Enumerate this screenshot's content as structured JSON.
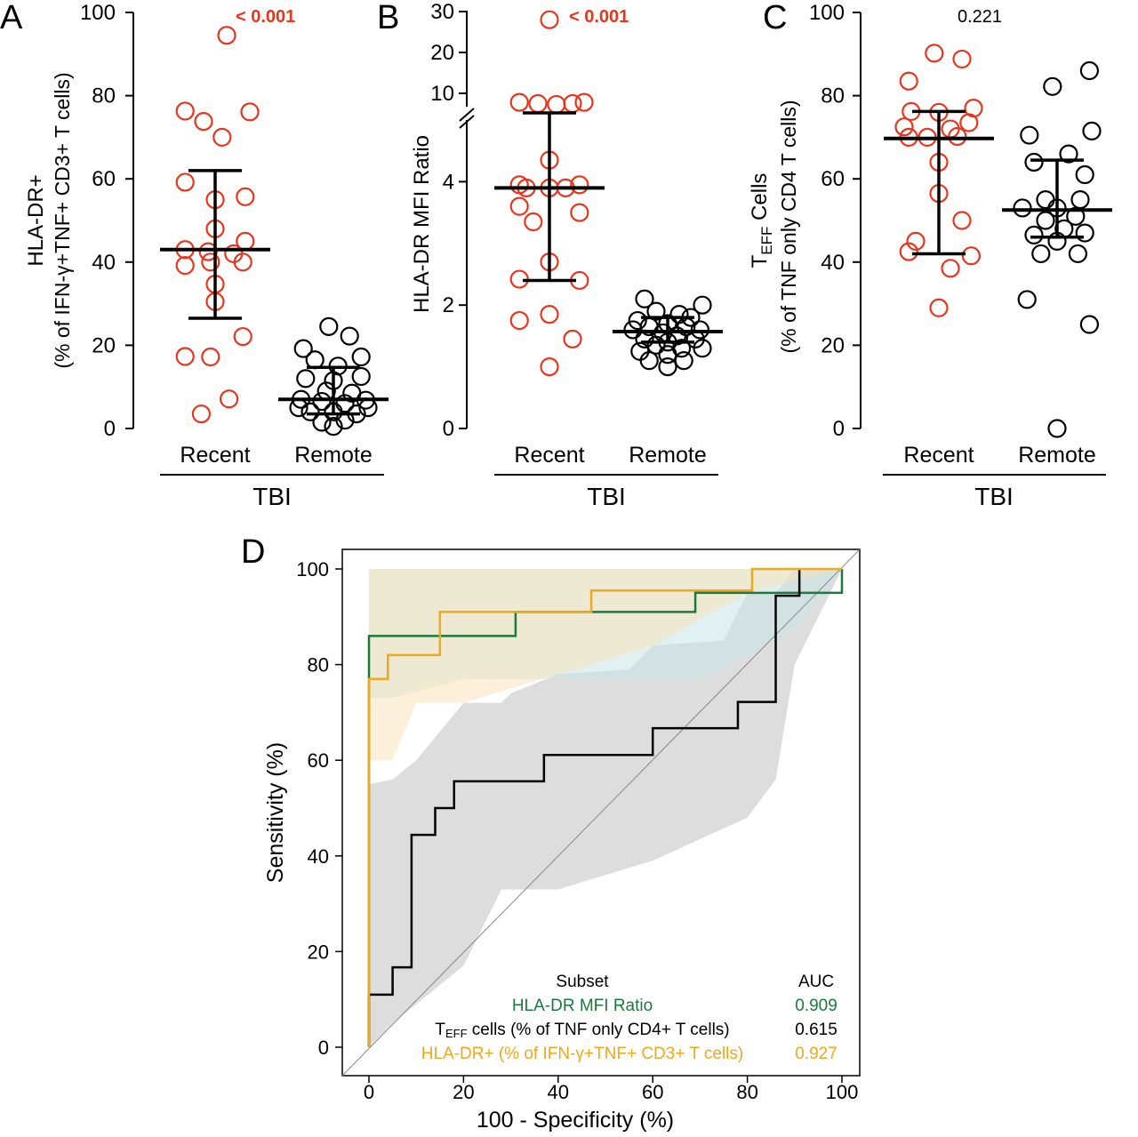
{
  "colors": {
    "recent": "#e8351e",
    "remote": "#000000",
    "green": "#1b7a3d",
    "orange": "#f0a81c",
    "black": "#000000",
    "pval_red": "#e8351e",
    "band_gray": "#d2d2d2",
    "band_blue": "#c9e3e6",
    "band_orange": "#fbe1b5"
  },
  "chart_data": [
    {
      "panel": "A",
      "type": "scatter",
      "ylabel_line1": "HLA-DR+",
      "ylabel_line2": "(% of IFN-γ+TNF+ CD3+ T cells)",
      "ylim": [
        0,
        100
      ],
      "yticks": [
        "0",
        "20",
        "40",
        "60",
        "80",
        "100"
      ],
      "categories": [
        "Recent",
        "Remote"
      ],
      "group_label": "TBI",
      "pvalue": "< 0.001",
      "series": [
        {
          "name": "Recent",
          "points": [
            [
              0.05,
              94.5
            ],
            [
              -0.13,
              76.3
            ],
            [
              -0.05,
              73.8
            ],
            [
              0.03,
              70.0
            ],
            [
              0.15,
              76.1
            ],
            [
              -0.13,
              59.2
            ],
            [
              0.13,
              55.7
            ],
            [
              0.0,
              55.0
            ],
            [
              0.0,
              48.0
            ],
            [
              -0.13,
              43.0
            ],
            [
              -0.03,
              42.5
            ],
            [
              0.13,
              45.0
            ],
            [
              0.08,
              42.0
            ],
            [
              -0.13,
              39.2
            ],
            [
              -0.02,
              40.0
            ],
            [
              0.12,
              40.0
            ],
            [
              0.0,
              34.7
            ],
            [
              0.0,
              30.5
            ],
            [
              0.12,
              22.1
            ],
            [
              -0.13,
              17.3
            ],
            [
              -0.02,
              17.2
            ],
            [
              0.06,
              7.1
            ],
            [
              -0.06,
              3.5
            ]
          ],
          "median": 43.0,
          "q1": 26.5,
          "q3": 62.0
        },
        {
          "name": "Remote",
          "points": [
            [
              -0.02,
              24.5
            ],
            [
              -0.13,
              19.2
            ],
            [
              0.07,
              22.2
            ],
            [
              0.12,
              17.2
            ],
            [
              -0.08,
              16.5
            ],
            [
              0.02,
              15.0
            ],
            [
              -0.12,
              12.0
            ],
            [
              0.0,
              11.5
            ],
            [
              0.12,
              12.5
            ],
            [
              -0.03,
              9.0
            ],
            [
              0.08,
              8.5
            ],
            [
              -0.14,
              7.0
            ],
            [
              -0.05,
              6.5
            ],
            [
              0.05,
              6.0
            ],
            [
              0.14,
              6.8
            ],
            [
              -0.1,
              4.0
            ],
            [
              0.0,
              4.0
            ],
            [
              0.1,
              3.5
            ],
            [
              -0.05,
              1.5
            ],
            [
              0.05,
              2.0
            ],
            [
              0.15,
              5.0
            ],
            [
              -0.15,
              5.0
            ],
            [
              0.0,
              0.5
            ]
          ],
          "median": 7.0,
          "q1": 3.5,
          "q3": 14.7
        }
      ]
    },
    {
      "panel": "B",
      "type": "scatter",
      "ylabel": "HLA-DR MFI Ratio",
      "ylim": [
        0,
        30
      ],
      "yticks_lower": [
        "0",
        "2",
        "4"
      ],
      "yticks_upper": [
        "10",
        "20",
        "30"
      ],
      "axis_break": [
        5.5,
        8.5
      ],
      "categories": [
        "Recent",
        "Remote"
      ],
      "group_label": "TBI",
      "pvalue": "< 0.001",
      "series": [
        {
          "name": "Recent",
          "points": [
            [
              0.0,
              28.0
            ],
            [
              -0.13,
              7.8
            ],
            [
              -0.05,
              7.5
            ],
            [
              0.03,
              7.3
            ],
            [
              0.1,
              7.5
            ],
            [
              0.15,
              7.8
            ],
            [
              0.0,
              4.35
            ],
            [
              -0.13,
              3.95
            ],
            [
              0.0,
              3.9
            ],
            [
              0.13,
              3.95
            ],
            [
              -0.13,
              3.6
            ],
            [
              0.13,
              3.5
            ],
            [
              -0.07,
              3.35
            ],
            [
              0.0,
              2.7
            ],
            [
              -0.13,
              2.42
            ],
            [
              0.13,
              2.4
            ],
            [
              -0.13,
              1.75
            ],
            [
              0.0,
              1.85
            ],
            [
              0.1,
              1.45
            ],
            [
              0.0,
              1.0
            ],
            [
              -0.1,
              3.9
            ],
            [
              0.07,
              3.9
            ]
          ],
          "median": 3.9,
          "q1": 2.4,
          "q3": 6.8
        },
        {
          "name": "Remote",
          "points": [
            [
              -0.1,
              2.1
            ],
            [
              0.15,
              2.0
            ],
            [
              -0.05,
              1.9
            ],
            [
              0.05,
              1.85
            ],
            [
              0.1,
              1.8
            ],
            [
              -0.13,
              1.75
            ],
            [
              0.0,
              1.7
            ],
            [
              -0.08,
              1.65
            ],
            [
              0.08,
              1.65
            ],
            [
              0.14,
              1.6
            ],
            [
              -0.15,
              1.6
            ],
            [
              -0.02,
              1.55
            ],
            [
              0.04,
              1.5
            ],
            [
              -0.1,
              1.45
            ],
            [
              0.12,
              1.45
            ],
            [
              0.0,
              1.4
            ],
            [
              -0.05,
              1.35
            ],
            [
              0.06,
              1.3
            ],
            [
              0.15,
              1.3
            ],
            [
              -0.12,
              1.25
            ],
            [
              0.0,
              1.2
            ],
            [
              -0.08,
              1.1
            ],
            [
              0.07,
              1.1
            ],
            [
              0.0,
              1.0
            ]
          ],
          "median": 1.57,
          "q1": 1.4,
          "q3": 1.8
        }
      ]
    },
    {
      "panel": "C",
      "type": "scatter",
      "ylabel_line1": "T",
      "ylabel_sub": "EFF",
      "ylabel_line1b": " Cells",
      "ylabel_line2": "(% of TNF only CD4 T cells)",
      "ylim": [
        0,
        100
      ],
      "yticks": [
        "0",
        "20",
        "40",
        "60",
        "80",
        "100"
      ],
      "categories": [
        "Recent",
        "Remote"
      ],
      "group_label": "TBI",
      "pvalue": "0.221",
      "series": [
        {
          "name": "Recent",
          "points": [
            [
              -0.02,
              90.2
            ],
            [
              0.1,
              88.8
            ],
            [
              -0.13,
              83.5
            ],
            [
              -0.12,
              76.2
            ],
            [
              0.0,
              76.0
            ],
            [
              0.15,
              77.0
            ],
            [
              -0.15,
              72.5
            ],
            [
              0.13,
              73.5
            ],
            [
              0.05,
              72.0
            ],
            [
              -0.05,
              70.0
            ],
            [
              0.08,
              70.2
            ],
            [
              -0.13,
              70.0
            ],
            [
              0.0,
              56.5
            ],
            [
              0.1,
              50.0
            ],
            [
              -0.1,
              45.0
            ],
            [
              0.05,
              38.5
            ],
            [
              -0.13,
              42.5
            ],
            [
              0.14,
              41.5
            ],
            [
              0.0,
              29.0
            ],
            [
              0.0,
              64.0
            ]
          ],
          "median": 69.7,
          "q1": 42.0,
          "q3": 76.2
        },
        {
          "name": "Remote",
          "points": [
            [
              0.14,
              86.0
            ],
            [
              -0.02,
              82.2
            ],
            [
              -0.12,
              70.5
            ],
            [
              0.15,
              71.5
            ],
            [
              -0.1,
              64.0
            ],
            [
              0.05,
              66.0
            ],
            [
              0.12,
              61.0
            ],
            [
              -0.05,
              55.0
            ],
            [
              0.1,
              55.0
            ],
            [
              -0.15,
              53.0
            ],
            [
              0.0,
              53.0
            ],
            [
              0.08,
              51.0
            ],
            [
              -0.05,
              50.0
            ],
            [
              0.03,
              48.0
            ],
            [
              -0.1,
              46.5
            ],
            [
              0.12,
              47.0
            ],
            [
              0.0,
              45.0
            ],
            [
              -0.07,
              42.0
            ],
            [
              0.09,
              42.0
            ],
            [
              -0.13,
              31.0
            ],
            [
              0.14,
              25.0
            ],
            [
              0.0,
              0.0
            ]
          ],
          "median": 52.5,
          "q1": 46.0,
          "q3": 64.5
        }
      ]
    },
    {
      "panel": "D",
      "type": "line",
      "xlabel": "100 - Specificity (%)",
      "ylabel": "Sensitivity (%)",
      "xlim": [
        0,
        100
      ],
      "ylim": [
        0,
        100
      ],
      "xticks": [
        "0",
        "20",
        "40",
        "60",
        "80",
        "100"
      ],
      "yticks": [
        "0",
        "20",
        "40",
        "60",
        "80",
        "100"
      ],
      "legend_header": "Subset",
      "legend_auc_header": "AUC",
      "series": [
        {
          "name": "HLA-DR MFI Ratio",
          "auc": "0.909",
          "x": [
            0,
            0,
            0,
            0,
            15,
            15,
            31,
            31,
            47,
            47,
            69,
            69,
            91,
            91,
            100,
            100
          ],
          "y": [
            0,
            77,
            77,
            86,
            86,
            86,
            86,
            91,
            91,
            91,
            91,
            95,
            95,
            95,
            95,
            100
          ]
        },
        {
          "name_prefix": "T",
          "name_sub": "EFF",
          "name_suffix": " cells (% of TNF only CD4+ T cells)",
          "auc": "0.615",
          "x": [
            0,
            0,
            5,
            5,
            9,
            9,
            14,
            14,
            18,
            18,
            37,
            37,
            60,
            60,
            78,
            78,
            86,
            86,
            91,
            91
          ],
          "y": [
            0,
            11,
            11,
            16.7,
            16.7,
            44.4,
            44.4,
            50,
            50,
            55.6,
            55.6,
            61.1,
            61.1,
            66.7,
            66.7,
            72.2,
            72.2,
            94.4,
            94.4,
            100
          ]
        },
        {
          "name": "HLA-DR+ (% of  IFN-γ+TNF+ CD3+ T cells)",
          "auc": "0.927",
          "x": [
            0,
            0,
            0,
            0,
            4,
            4,
            15,
            15,
            22,
            22,
            47,
            47,
            81,
            81,
            100
          ],
          "y": [
            0,
            77,
            77,
            77,
            77,
            82,
            82,
            91,
            91,
            91,
            91,
            95.5,
            95.5,
            100,
            100
          ]
        }
      ],
      "bands": {
        "gray": {
          "x": [
            0,
            5,
            20,
            28,
            40,
            60,
            80,
            86,
            90,
            100,
            100,
            90,
            86,
            80,
            75,
            60,
            55,
            40,
            30,
            28,
            20,
            10,
            5,
            0
          ],
          "y": [
            0,
            5,
            17,
            33,
            33,
            39,
            48,
            56,
            80,
            100,
            100,
            100,
            95,
            95,
            85,
            84,
            79,
            78,
            74,
            72,
            72,
            60,
            56,
            55
          ]
        },
        "blue": {
          "x": [
            0,
            0,
            5,
            20,
            30,
            40,
            60,
            70,
            80,
            90,
            100,
            100,
            90,
            70,
            40,
            20,
            5,
            0
          ],
          "y": [
            73,
            100,
            100,
            100,
            100,
            100,
            100,
            100,
            100,
            100,
            100,
            100,
            87,
            77,
            77,
            77,
            73,
            73
          ]
        },
        "orange": {
          "x": [
            0,
            0,
            5,
            20,
            40,
            60,
            80,
            100,
            100,
            80,
            60,
            40,
            20,
            10,
            5,
            0
          ],
          "y": [
            60,
            100,
            100,
            100,
            100,
            100,
            100,
            100,
            100,
            95,
            84,
            78,
            72,
            72,
            60,
            60
          ]
        }
      }
    }
  ],
  "panel_letters": [
    "A",
    "B",
    "C",
    "D"
  ]
}
